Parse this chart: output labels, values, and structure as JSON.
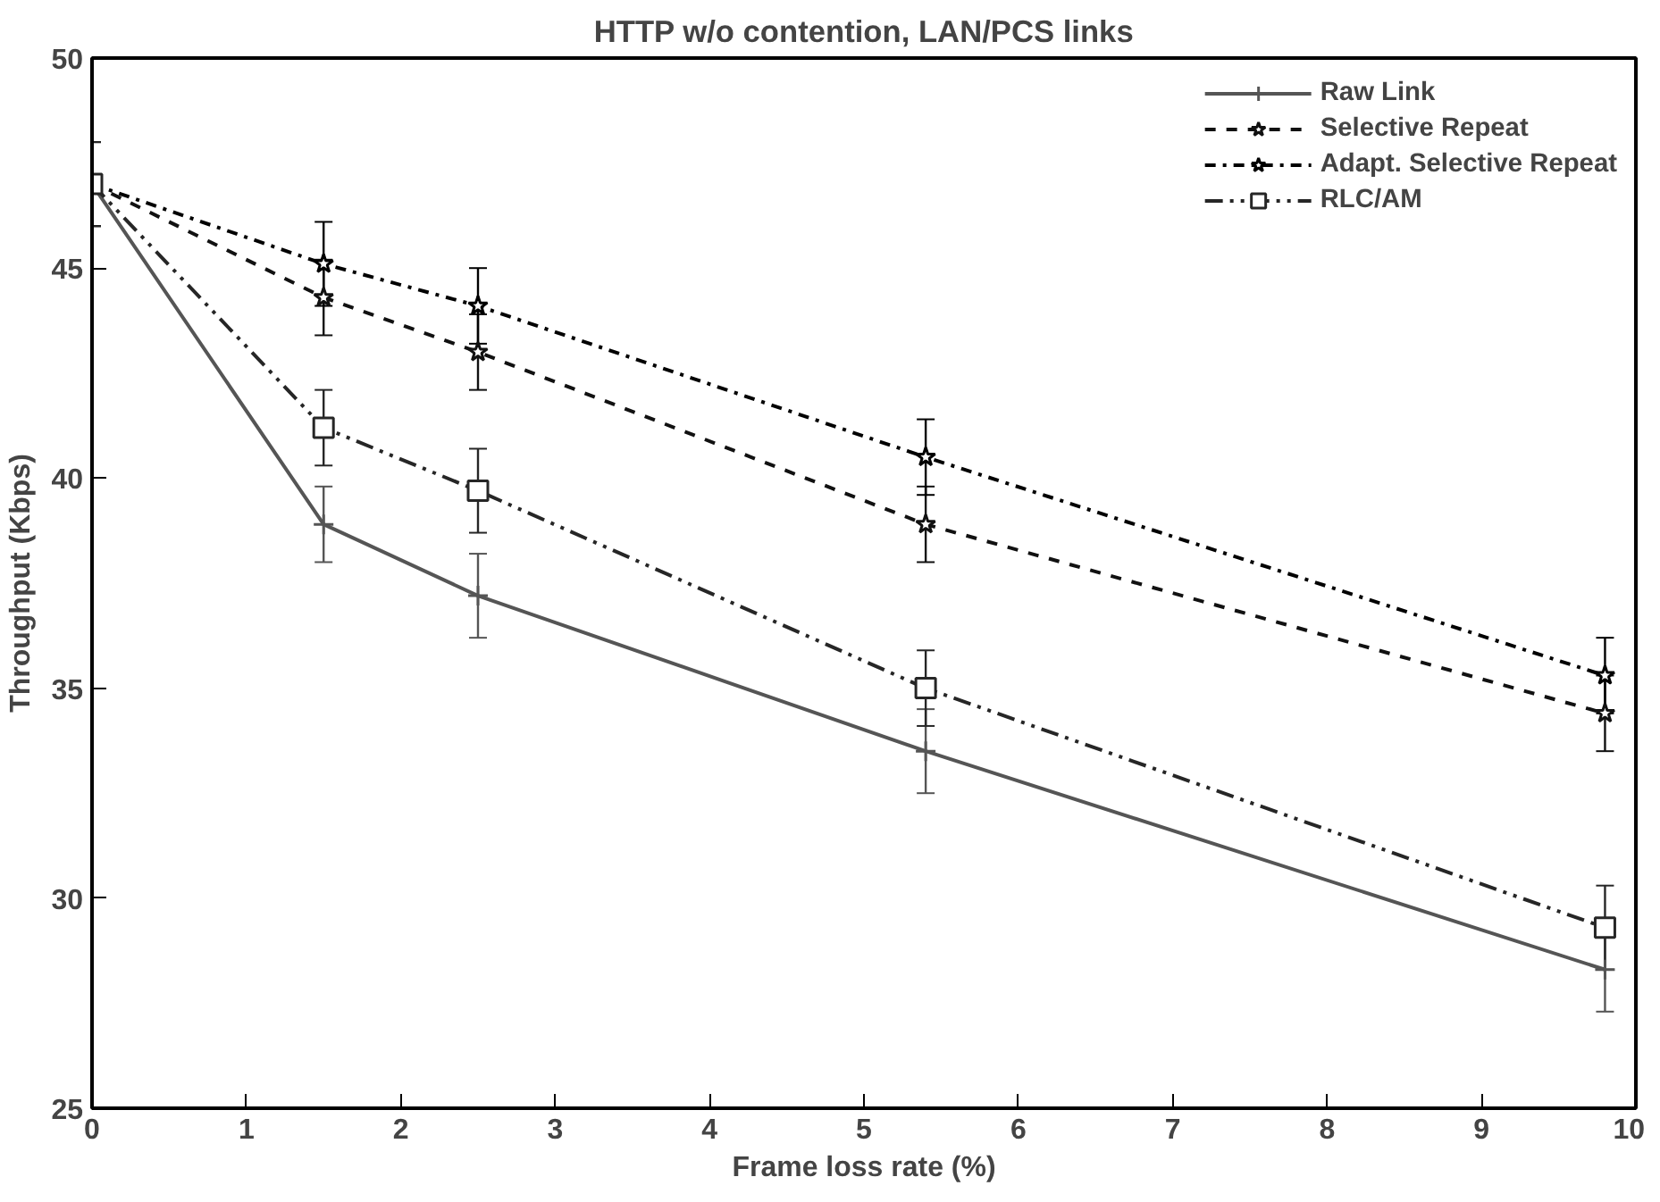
{
  "chart_data": {
    "type": "line",
    "title": "HTTP w/o contention, LAN/PCS links",
    "xlabel": "Frame loss rate (%)",
    "ylabel": "Throughput (Kbps)",
    "x": [
      0,
      1.5,
      2.5,
      5.4,
      9.8
    ],
    "series": [
      {
        "name": "Raw Link",
        "color": "#555555",
        "line_style": "solid",
        "marker": "cross",
        "values": [
          47,
          38.9,
          37.2,
          33.5,
          28.3
        ],
        "errors": [
          1,
          0.9,
          1.0,
          1.0,
          1.0
        ]
      },
      {
        "name": "Selective Repeat",
        "color": "#111111",
        "line_style": "dashed",
        "marker": "star",
        "values": [
          47,
          44.3,
          43.0,
          38.9,
          34.4
        ],
        "errors": [
          1,
          0.9,
          0.9,
          0.9,
          0.9
        ]
      },
      {
        "name": "Adapt. Selective Repeat",
        "color": "#000000",
        "line_style": "dashdot",
        "marker": "star",
        "values": [
          47,
          45.1,
          44.1,
          40.5,
          35.3
        ],
        "errors": [
          1,
          1.0,
          0.9,
          0.9,
          0.9
        ]
      },
      {
        "name": "RLC/AM",
        "color": "#262626",
        "line_style": "dashdotdot",
        "marker": "square",
        "values": [
          47,
          41.2,
          39.7,
          35.0,
          29.3
        ],
        "errors": [
          1,
          0.9,
          1.0,
          0.9,
          1.0
        ]
      }
    ],
    "xlim": [
      0,
      10
    ],
    "ylim": [
      25,
      50
    ],
    "xticks": [
      0,
      1,
      2,
      3,
      4,
      5,
      6,
      7,
      8,
      9,
      10
    ],
    "yticks": [
      25,
      30,
      35,
      40,
      45,
      50
    ],
    "grid": false,
    "legend": "top right"
  }
}
